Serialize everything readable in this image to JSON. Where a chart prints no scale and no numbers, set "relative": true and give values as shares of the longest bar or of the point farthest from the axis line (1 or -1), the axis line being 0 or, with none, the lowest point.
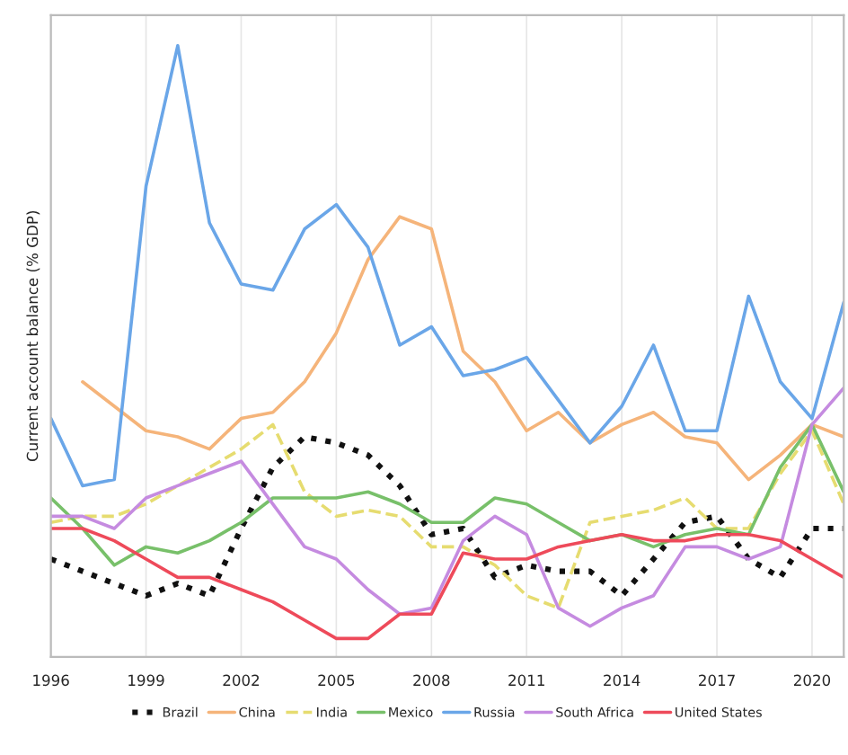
{
  "chart_data": {
    "type": "line",
    "relative": true,
    "ylabel": "Current account balance (% GDP)",
    "x": [
      1996,
      1997,
      1998,
      1999,
      2000,
      2001,
      2002,
      2003,
      2004,
      2005,
      2006,
      2007,
      2008,
      2009,
      2010,
      2011,
      2012,
      2013,
      2014,
      2015,
      2016,
      2017,
      2018,
      2019,
      2020,
      2021
    ],
    "xlim": [
      1996,
      2021
    ],
    "xticks": [
      1996,
      1999,
      2002,
      2005,
      2008,
      2011,
      2014,
      2017,
      2020
    ],
    "grid": "x",
    "legend": "bottom",
    "series": [
      {
        "name": "Brazil",
        "color": "#111111",
        "line_style": "dotted",
        "values": [
          0.16,
          0.14,
          0.12,
          0.1,
          0.12,
          0.1,
          0.21,
          0.31,
          0.36,
          0.35,
          0.33,
          0.28,
          0.2,
          0.21,
          0.13,
          0.15,
          0.14,
          0.14,
          0.1,
          0.16,
          0.22,
          0.23,
          0.16,
          0.13,
          0.21,
          0.21
        ]
      },
      {
        "name": "China",
        "color": "#f5b47a",
        "values": [
          null,
          0.45,
          0.41,
          0.37,
          0.36,
          0.34,
          0.39,
          0.4,
          0.45,
          0.53,
          0.65,
          0.72,
          0.7,
          0.5,
          0.45,
          0.37,
          0.4,
          0.35,
          0.38,
          0.4,
          0.36,
          0.35,
          0.29,
          0.33,
          0.38,
          0.36
        ]
      },
      {
        "name": "India",
        "color": "#e6dc70",
        "line_style": "dashed",
        "values": [
          0.22,
          0.23,
          0.23,
          0.25,
          0.28,
          0.31,
          0.34,
          0.38,
          0.27,
          0.23,
          0.24,
          0.23,
          0.18,
          0.18,
          0.15,
          0.1,
          0.08,
          0.22,
          0.23,
          0.24,
          0.26,
          0.21,
          0.21,
          0.3,
          0.37,
          0.25
        ]
      },
      {
        "name": "Mexico",
        "color": "#78c06a",
        "values": [
          0.26,
          0.21,
          0.15,
          0.18,
          0.17,
          0.19,
          0.22,
          0.26,
          0.26,
          0.26,
          0.27,
          0.25,
          0.22,
          0.22,
          0.26,
          0.25,
          0.22,
          0.19,
          0.2,
          0.18,
          0.2,
          0.21,
          0.2,
          0.31,
          0.38,
          0.27
        ]
      },
      {
        "name": "Russia",
        "color": "#6aa6e8",
        "values": [
          0.39,
          0.28,
          0.29,
          0.77,
          1.0,
          0.71,
          0.61,
          0.6,
          0.7,
          0.74,
          0.67,
          0.51,
          0.54,
          0.46,
          0.47,
          0.49,
          0.42,
          0.35,
          0.41,
          0.51,
          0.37,
          0.37,
          0.59,
          0.45,
          0.39,
          0.58
        ]
      },
      {
        "name": "South Africa",
        "color": "#c58be0",
        "values": [
          0.23,
          0.23,
          0.21,
          0.26,
          0.28,
          0.3,
          0.32,
          0.25,
          0.18,
          0.16,
          0.11,
          0.07,
          0.08,
          0.19,
          0.23,
          0.2,
          0.08,
          0.05,
          0.08,
          0.1,
          0.18,
          0.18,
          0.16,
          0.18,
          0.38,
          0.44
        ]
      },
      {
        "name": "United States",
        "color": "#ee4a5a",
        "values": [
          0.21,
          0.21,
          0.19,
          0.16,
          0.13,
          0.13,
          0.11,
          0.09,
          0.06,
          0.03,
          0.03,
          0.07,
          0.07,
          0.17,
          0.16,
          0.16,
          0.18,
          0.19,
          0.2,
          0.19,
          0.19,
          0.2,
          0.2,
          0.19,
          0.16,
          0.13
        ]
      }
    ]
  }
}
